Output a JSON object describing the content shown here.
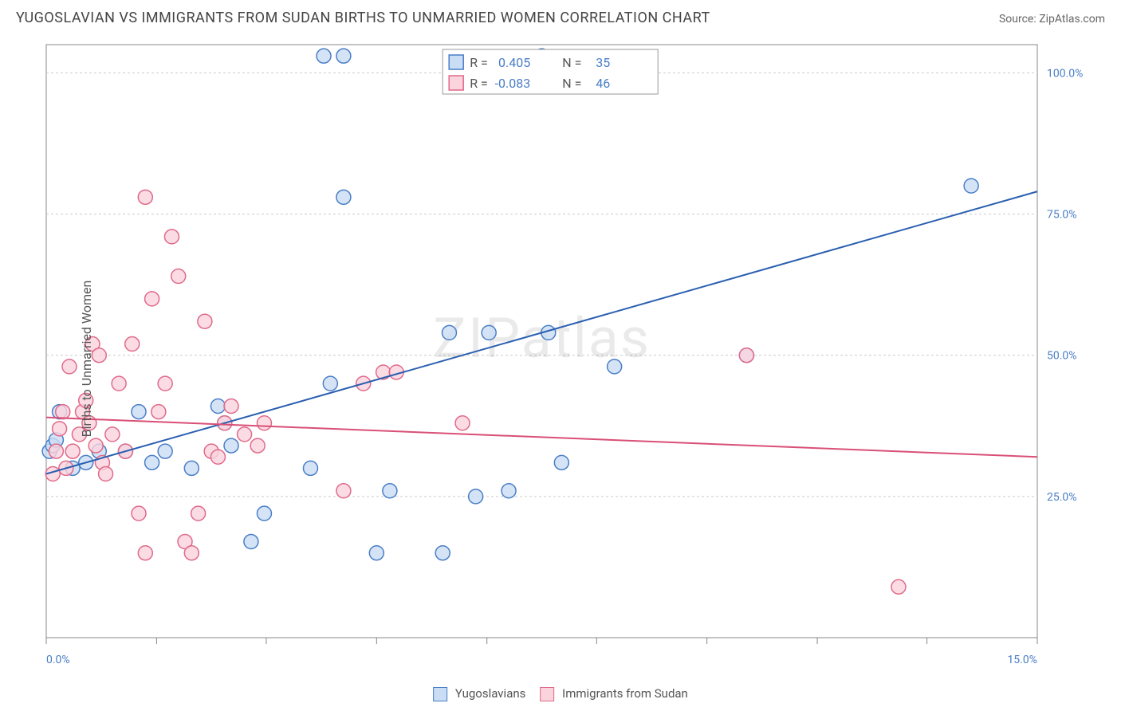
{
  "title": "YUGOSLAVIAN VS IMMIGRANTS FROM SUDAN BIRTHS TO UNMARRIED WOMEN CORRELATION CHART",
  "source_label": "Source: ZipAtlas.com",
  "ylabel": "Births to Unmarried Women",
  "watermark": "ZIPatlas",
  "chart": {
    "type": "scatter",
    "background_color": "#ffffff",
    "grid_color": "#cccccc",
    "border_color": "#888888",
    "xlim": [
      0,
      15
    ],
    "ylim": [
      0,
      105
    ],
    "x_ticks": [
      0,
      1.67,
      3.33,
      5,
      6.67,
      8.33,
      10,
      11.67,
      13.33,
      15
    ],
    "x_tick_labels_visible": {
      "start": "0.0%",
      "end": "15.0%"
    },
    "y_ticks": [
      25,
      50,
      75,
      100
    ],
    "y_tick_labels": [
      "25.0%",
      "50.0%",
      "75.0%",
      "100.0%"
    ],
    "marker_radius": 9,
    "marker_stroke_width": 1.5,
    "trend_line_width": 2,
    "series": [
      {
        "name": "Yugoslavians",
        "fill": "#c9ddf4",
        "stroke": "#4a7ec7",
        "trend_color": "#2a5fb0",
        "R": 0.405,
        "N": 35,
        "trend": {
          "x1": 0,
          "y1": 29,
          "x2": 15,
          "y2": 79
        },
        "points": [
          [
            0.05,
            33
          ],
          [
            0.1,
            34
          ],
          [
            0.15,
            35
          ],
          [
            0.2,
            40
          ],
          [
            0.4,
            30
          ],
          [
            0.6,
            31
          ],
          [
            0.8,
            33
          ],
          [
            1.2,
            33
          ],
          [
            1.4,
            40
          ],
          [
            1.6,
            31
          ],
          [
            1.8,
            33
          ],
          [
            2.2,
            30
          ],
          [
            2.6,
            41
          ],
          [
            2.7,
            38
          ],
          [
            2.8,
            34
          ],
          [
            3.1,
            17
          ],
          [
            3.3,
            22
          ],
          [
            4.0,
            30
          ],
          [
            4.2,
            103
          ],
          [
            4.3,
            45
          ],
          [
            4.5,
            103
          ],
          [
            4.5,
            78
          ],
          [
            5.0,
            15
          ],
          [
            5.2,
            26
          ],
          [
            6.0,
            15
          ],
          [
            6.1,
            54
          ],
          [
            6.5,
            25
          ],
          [
            6.7,
            54
          ],
          [
            7.0,
            26
          ],
          [
            7.5,
            103
          ],
          [
            7.6,
            54
          ],
          [
            7.8,
            31
          ],
          [
            8.6,
            48
          ],
          [
            10.6,
            50
          ],
          [
            14.0,
            80
          ]
        ]
      },
      {
        "name": "Immigrants from Sudan",
        "fill": "#fbd3dd",
        "stroke": "#e06a8a",
        "trend_color": "#d94f77",
        "R": -0.083,
        "N": 46,
        "trend": {
          "x1": 0,
          "y1": 39,
          "x2": 15,
          "y2": 32
        },
        "points": [
          [
            0.1,
            29
          ],
          [
            0.15,
            33
          ],
          [
            0.2,
            37
          ],
          [
            0.25,
            40
          ],
          [
            0.3,
            30
          ],
          [
            0.35,
            48
          ],
          [
            0.4,
            33
          ],
          [
            0.5,
            36
          ],
          [
            0.55,
            40
          ],
          [
            0.6,
            42
          ],
          [
            0.65,
            38
          ],
          [
            0.7,
            52
          ],
          [
            0.75,
            34
          ],
          [
            0.8,
            50
          ],
          [
            0.85,
            31
          ],
          [
            0.9,
            29
          ],
          [
            1.0,
            36
          ],
          [
            1.1,
            45
          ],
          [
            1.2,
            33
          ],
          [
            1.3,
            52
          ],
          [
            1.4,
            22
          ],
          [
            1.5,
            15
          ],
          [
            1.5,
            78
          ],
          [
            1.6,
            60
          ],
          [
            1.7,
            40
          ],
          [
            1.8,
            45
          ],
          [
            1.9,
            71
          ],
          [
            2.0,
            64
          ],
          [
            2.1,
            17
          ],
          [
            2.2,
            15
          ],
          [
            2.3,
            22
          ],
          [
            2.4,
            56
          ],
          [
            2.5,
            33
          ],
          [
            2.6,
            32
          ],
          [
            2.7,
            38
          ],
          [
            2.8,
            41
          ],
          [
            3.0,
            36
          ],
          [
            3.2,
            34
          ],
          [
            3.3,
            38
          ],
          [
            4.5,
            26
          ],
          [
            4.8,
            45
          ],
          [
            5.1,
            47
          ],
          [
            5.3,
            47
          ],
          [
            6.3,
            38
          ],
          [
            10.6,
            50
          ],
          [
            12.9,
            9
          ]
        ]
      }
    ]
  },
  "corr_legend": {
    "r_label": "R =",
    "n_label": "N =",
    "value_color": "#4a7ec7",
    "label_color": "#555555"
  }
}
